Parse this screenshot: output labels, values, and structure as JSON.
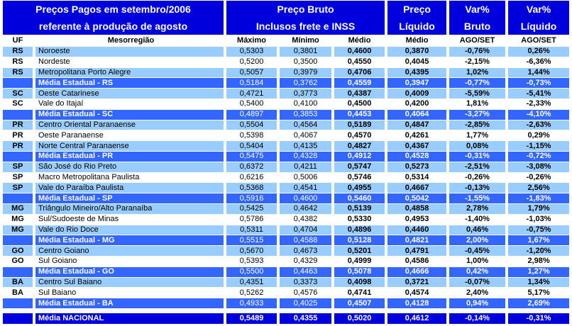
{
  "title": {
    "line1": "Preços Pagos em setembro/2006",
    "line2": "referente à produção de agosto"
  },
  "header_bands": {
    "preco_bruto_line1": "Preço Bruto",
    "preco_bruto_line2": "Inclusos frete e INSS",
    "preco_liquido_line1": "Preço",
    "preco_liquido_line2": "Líquido",
    "var_bruto_line1": "Var%",
    "var_bruto_line2": "Bruto",
    "var_liquido_line1": "Var%",
    "var_liquido_line2": "Líquido"
  },
  "columns": {
    "uf": "UF",
    "mesorregiao": "Mesorregião",
    "maximo": "Máximo",
    "minimo": "Mínimo",
    "medio_bruto": "Médio",
    "medio_liquido": "Médio",
    "ago_set_bruto": "AGO/SET",
    "ago_set_liquido": "AGO/SET"
  },
  "colors": {
    "header_blue": "#0000DD",
    "state_average_blue": "#3366FF",
    "row_light_blue": "#99CCFF",
    "row_white": "#FFFFFF",
    "text_dark": "#000000",
    "text_light": "#FFFFFF"
  },
  "rows": [
    {
      "uf": "RS",
      "region": "Noroeste",
      "maximo": "0,5303",
      "minimo": "0,3801",
      "medio_bruto": "0,4600",
      "medio_liquido": "0,3870",
      "var_bruto": "-0,76%",
      "var_liquido": "0,26%",
      "type": "light"
    },
    {
      "uf": "RS",
      "region": "Nordeste",
      "maximo": "0,5200",
      "minimo": "0,3500",
      "medio_bruto": "0,4550",
      "medio_liquido": "0,4045",
      "var_bruto": "-2,15%",
      "var_liquido": "-6,36%",
      "type": "white"
    },
    {
      "uf": "RS",
      "region": "Metropolitana Porto Alegre",
      "maximo": "0,5057",
      "minimo": "0,3979",
      "medio_bruto": "0,4706",
      "medio_liquido": "0,4395",
      "var_bruto": "1,02%",
      "var_liquido": "1,44%",
      "type": "light"
    },
    {
      "uf": "",
      "region": "Média Estadual - RS",
      "maximo": "0,5184",
      "minimo": "0,3762",
      "medio_bruto": "0,4559",
      "medio_liquido": "0,3947",
      "var_bruto": "-0,77%",
      "var_liquido": "-0,73%",
      "type": "media"
    },
    {
      "uf": "SC",
      "region": "Oeste Catarinese",
      "maximo": "0,4721",
      "minimo": "0,3773",
      "medio_bruto": "0,4387",
      "medio_liquido": "0,4009",
      "var_bruto": "-5,59%",
      "var_liquido": "-5,41%",
      "type": "light"
    },
    {
      "uf": "SC",
      "region": "Vale do Itajaí",
      "maximo": "0,5400",
      "minimo": "0,4100",
      "medio_bruto": "0,4500",
      "medio_liquido": "0,4200",
      "var_bruto": "1,81%",
      "var_liquido": "-2,33%",
      "type": "white"
    },
    {
      "uf": "",
      "region": "Média Estadual - SC",
      "maximo": "0,4897",
      "minimo": "0,3853",
      "medio_bruto": "0,4453",
      "medio_liquido": "0,4064",
      "var_bruto": "-3,27%",
      "var_liquido": "-4,10%",
      "type": "media"
    },
    {
      "uf": "PR",
      "region": "Centro Oriental Paranaense",
      "maximo": "0,5504",
      "minimo": "0,4564",
      "medio_bruto": "0,5189",
      "medio_liquido": "0,4847",
      "var_bruto": "-2,85%",
      "var_liquido": "-2,63%",
      "type": "light"
    },
    {
      "uf": "PR",
      "region": "Oeste Paranaense",
      "maximo": "0,5398",
      "minimo": "0,4067",
      "medio_bruto": "0,4570",
      "medio_liquido": "0,4261",
      "var_bruto": "1,77%",
      "var_liquido": "0,29%",
      "type": "white"
    },
    {
      "uf": "PR",
      "region": "Norte Central Paranaense",
      "maximo": "0,5404",
      "minimo": "0,4135",
      "medio_bruto": "0,4827",
      "medio_liquido": "0,4367",
      "var_bruto": "0,08%",
      "var_liquido": "-1,15%",
      "type": "light"
    },
    {
      "uf": "",
      "region": "Média Estadual - PR",
      "maximo": "0,5475",
      "minimo": "0,4328",
      "medio_bruto": "0,4912",
      "medio_liquido": "0,4528",
      "var_bruto": "-0,31%",
      "var_liquido": "-0,72%",
      "type": "media"
    },
    {
      "uf": "SP",
      "region": "São José do Rio Preto",
      "maximo": "0,6372",
      "minimo": "0,4211",
      "medio_bruto": "0,5747",
      "medio_liquido": "0,5273",
      "var_bruto": "-2,51%",
      "var_liquido": "-3,08%",
      "type": "light"
    },
    {
      "uf": "SP",
      "region": "Macro Metropolitana Paulista",
      "maximo": "0,6216",
      "minimo": "0,5006",
      "medio_bruto": "0,5746",
      "medio_liquido": "0,5314",
      "var_bruto": "-0,26%",
      "var_liquido": "-0,26%",
      "type": "white"
    },
    {
      "uf": "SP",
      "region": "Vale do Paraíba Paulista",
      "maximo": "0,5368",
      "minimo": "0,4541",
      "medio_bruto": "0,4955",
      "medio_liquido": "0,4667",
      "var_bruto": "-0,13%",
      "var_liquido": "2,56%",
      "type": "light"
    },
    {
      "uf": "",
      "region": "Média Estadual - SP",
      "maximo": "0,5916",
      "minimo": "0,4600",
      "medio_bruto": "0,5460",
      "medio_liquido": "0,5042",
      "var_bruto": "-1,55%",
      "var_liquido": "-1,83%",
      "type": "media"
    },
    {
      "uf": "MG",
      "region": "Triângulo Mineiro/Alto Paranaíba",
      "maximo": "0,5425",
      "minimo": "0,4642",
      "medio_bruto": "0,5139",
      "medio_liquido": "0,4858",
      "var_bruto": "2,78%",
      "var_liquido": "1,79%",
      "type": "light"
    },
    {
      "uf": "MG",
      "region": "Sul/Sudoeste de Minas",
      "maximo": "0,5786",
      "minimo": "0,4382",
      "medio_bruto": "0,5330",
      "medio_liquido": "0,4953",
      "var_bruto": "-1,40%",
      "var_liquido": "-1,03%",
      "type": "white"
    },
    {
      "uf": "MG",
      "region": "Vale do Rio Doce",
      "maximo": "0,5311",
      "minimo": "0,4704",
      "medio_bruto": "0,4896",
      "medio_liquido": "0,4460",
      "var_bruto": "0,46%",
      "var_liquido": "-0,75%",
      "type": "light"
    },
    {
      "uf": "",
      "region": "Média Estadual - MG",
      "maximo": "0,5515",
      "minimo": "0,4588",
      "medio_bruto": "0,5128",
      "medio_liquido": "0,4821",
      "var_bruto": "2,00%",
      "var_liquido": "1,67%",
      "type": "media"
    },
    {
      "uf": "GO",
      "region": "Centro Goiano",
      "maximo": "0,5670",
      "minimo": "0,4673",
      "medio_bruto": "0,5201",
      "medio_liquido": "0,4791",
      "var_bruto": "-0,45%",
      "var_liquido": "-1,20%",
      "type": "light"
    },
    {
      "uf": "GO",
      "region": "Sul Goiano",
      "maximo": "0,5393",
      "minimo": "0,4329",
      "medio_bruto": "0,4999",
      "medio_liquido": "0,4586",
      "var_bruto": "1,00%",
      "var_liquido": "2,98%",
      "type": "white"
    },
    {
      "uf": "",
      "region": "Média Estadual - GO",
      "maximo": "0,5500",
      "minimo": "0,4463",
      "medio_bruto": "0,5078",
      "medio_liquido": "0,4666",
      "var_bruto": "0,42%",
      "var_liquido": "1,27%",
      "type": "media"
    },
    {
      "uf": "BA",
      "region": "Centro Sul Baiano",
      "maximo": "0,4351",
      "minimo": "0,3373",
      "medio_bruto": "0,4098",
      "medio_liquido": "0,3721",
      "var_bruto": "-0,07%",
      "var_liquido": "1,34%",
      "type": "light"
    },
    {
      "uf": "BA",
      "region": "Sul Baiano",
      "maximo": "0,5262",
      "minimo": "0,4576",
      "medio_bruto": "0,4741",
      "medio_liquido": "0,4574",
      "var_bruto": "2,40%",
      "var_liquido": "5,17%",
      "type": "white"
    },
    {
      "uf": "",
      "region": "Média Estadual - BA",
      "maximo": "0,4933",
      "minimo": "0,4025",
      "medio_bruto": "0,4507",
      "medio_liquido": "0,4128",
      "var_bruto": "0,94%",
      "var_liquido": "2,69%",
      "type": "media"
    }
  ],
  "national": {
    "uf": "",
    "region": "Média NACIONAL",
    "maximo": "0,5489",
    "minimo": "0,4355",
    "medio_bruto": "0,5020",
    "medio_liquido": "0,4612",
    "var_bruto": "-0,14%",
    "var_liquido": "-0,31%"
  }
}
